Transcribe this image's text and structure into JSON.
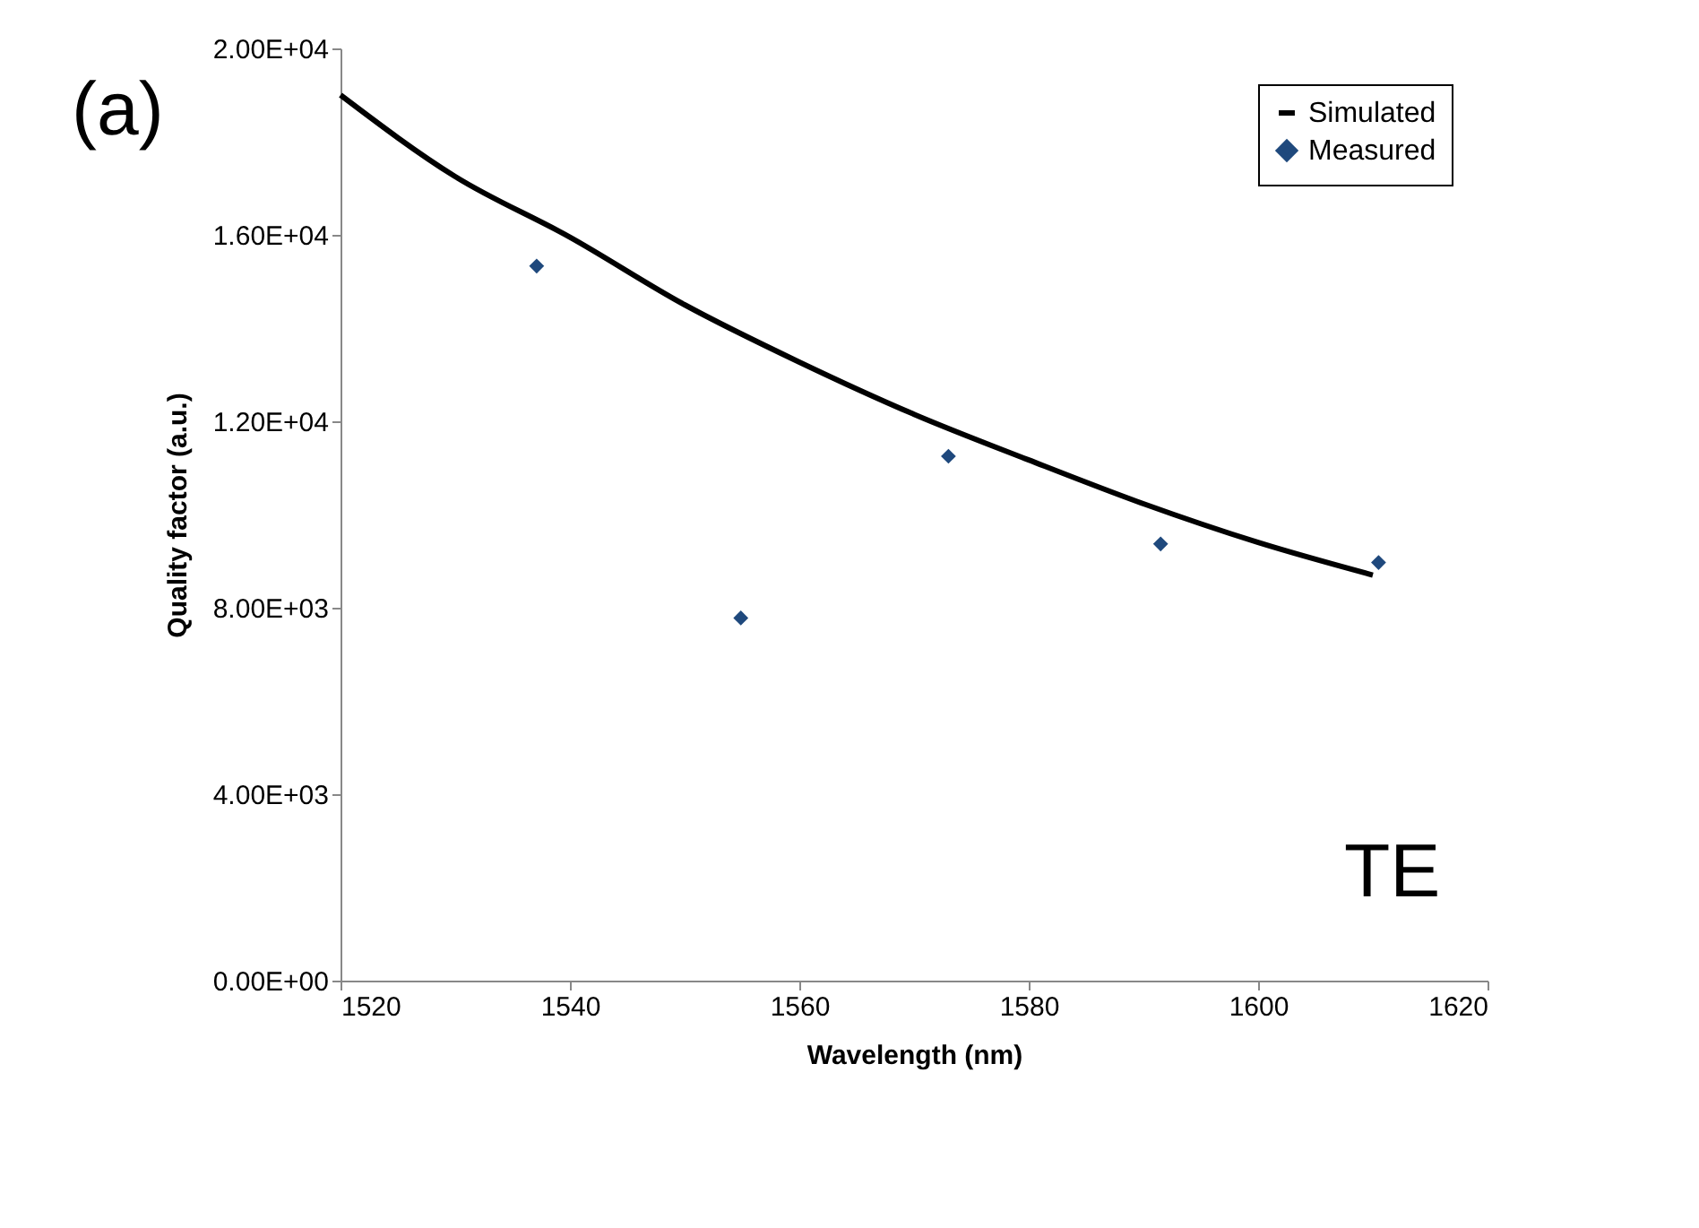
{
  "chart_data": {
    "type": "line",
    "xlabel": "Wavelength (nm)",
    "ylabel": "Quality factor (a.u.)",
    "xlim": [
      1520,
      1620
    ],
    "xticks": [
      1520,
      1540,
      1560,
      1580,
      1600,
      1620
    ],
    "ylim": [
      0,
      20000
    ],
    "yticks": [
      {
        "value": 0,
        "label": "0.00E+00"
      },
      {
        "value": 4000,
        "label": "4.00E+03"
      },
      {
        "value": 8000,
        "label": "8.00E+03"
      },
      {
        "value": 12000,
        "label": "1.20E+04"
      },
      {
        "value": 16000,
        "label": "1.60E+04"
      },
      {
        "value": 20000,
        "label": "2.00E+04"
      }
    ],
    "grid": false,
    "legend": "top right",
    "annotations": [
      "(a)",
      "TE"
    ],
    "series": [
      {
        "name": "Simulated",
        "color": "#000000",
        "marker": "none",
        "x": [
          1520,
          1530,
          1540,
          1550,
          1560,
          1570,
          1580,
          1590,
          1600,
          1610
        ],
        "values": [
          19000,
          17250,
          15950,
          14500,
          13270,
          12150,
          11170,
          10230,
          9400,
          8700
        ]
      },
      {
        "name": "Measured",
        "type": "scatter",
        "color": "#1f497d",
        "marker": "diamond",
        "x": [
          1537.1,
          1554.9,
          1573.0,
          1591.5,
          1610.5
        ],
        "values": [
          15330,
          7780,
          11250,
          9370,
          8970
        ]
      }
    ]
  }
}
